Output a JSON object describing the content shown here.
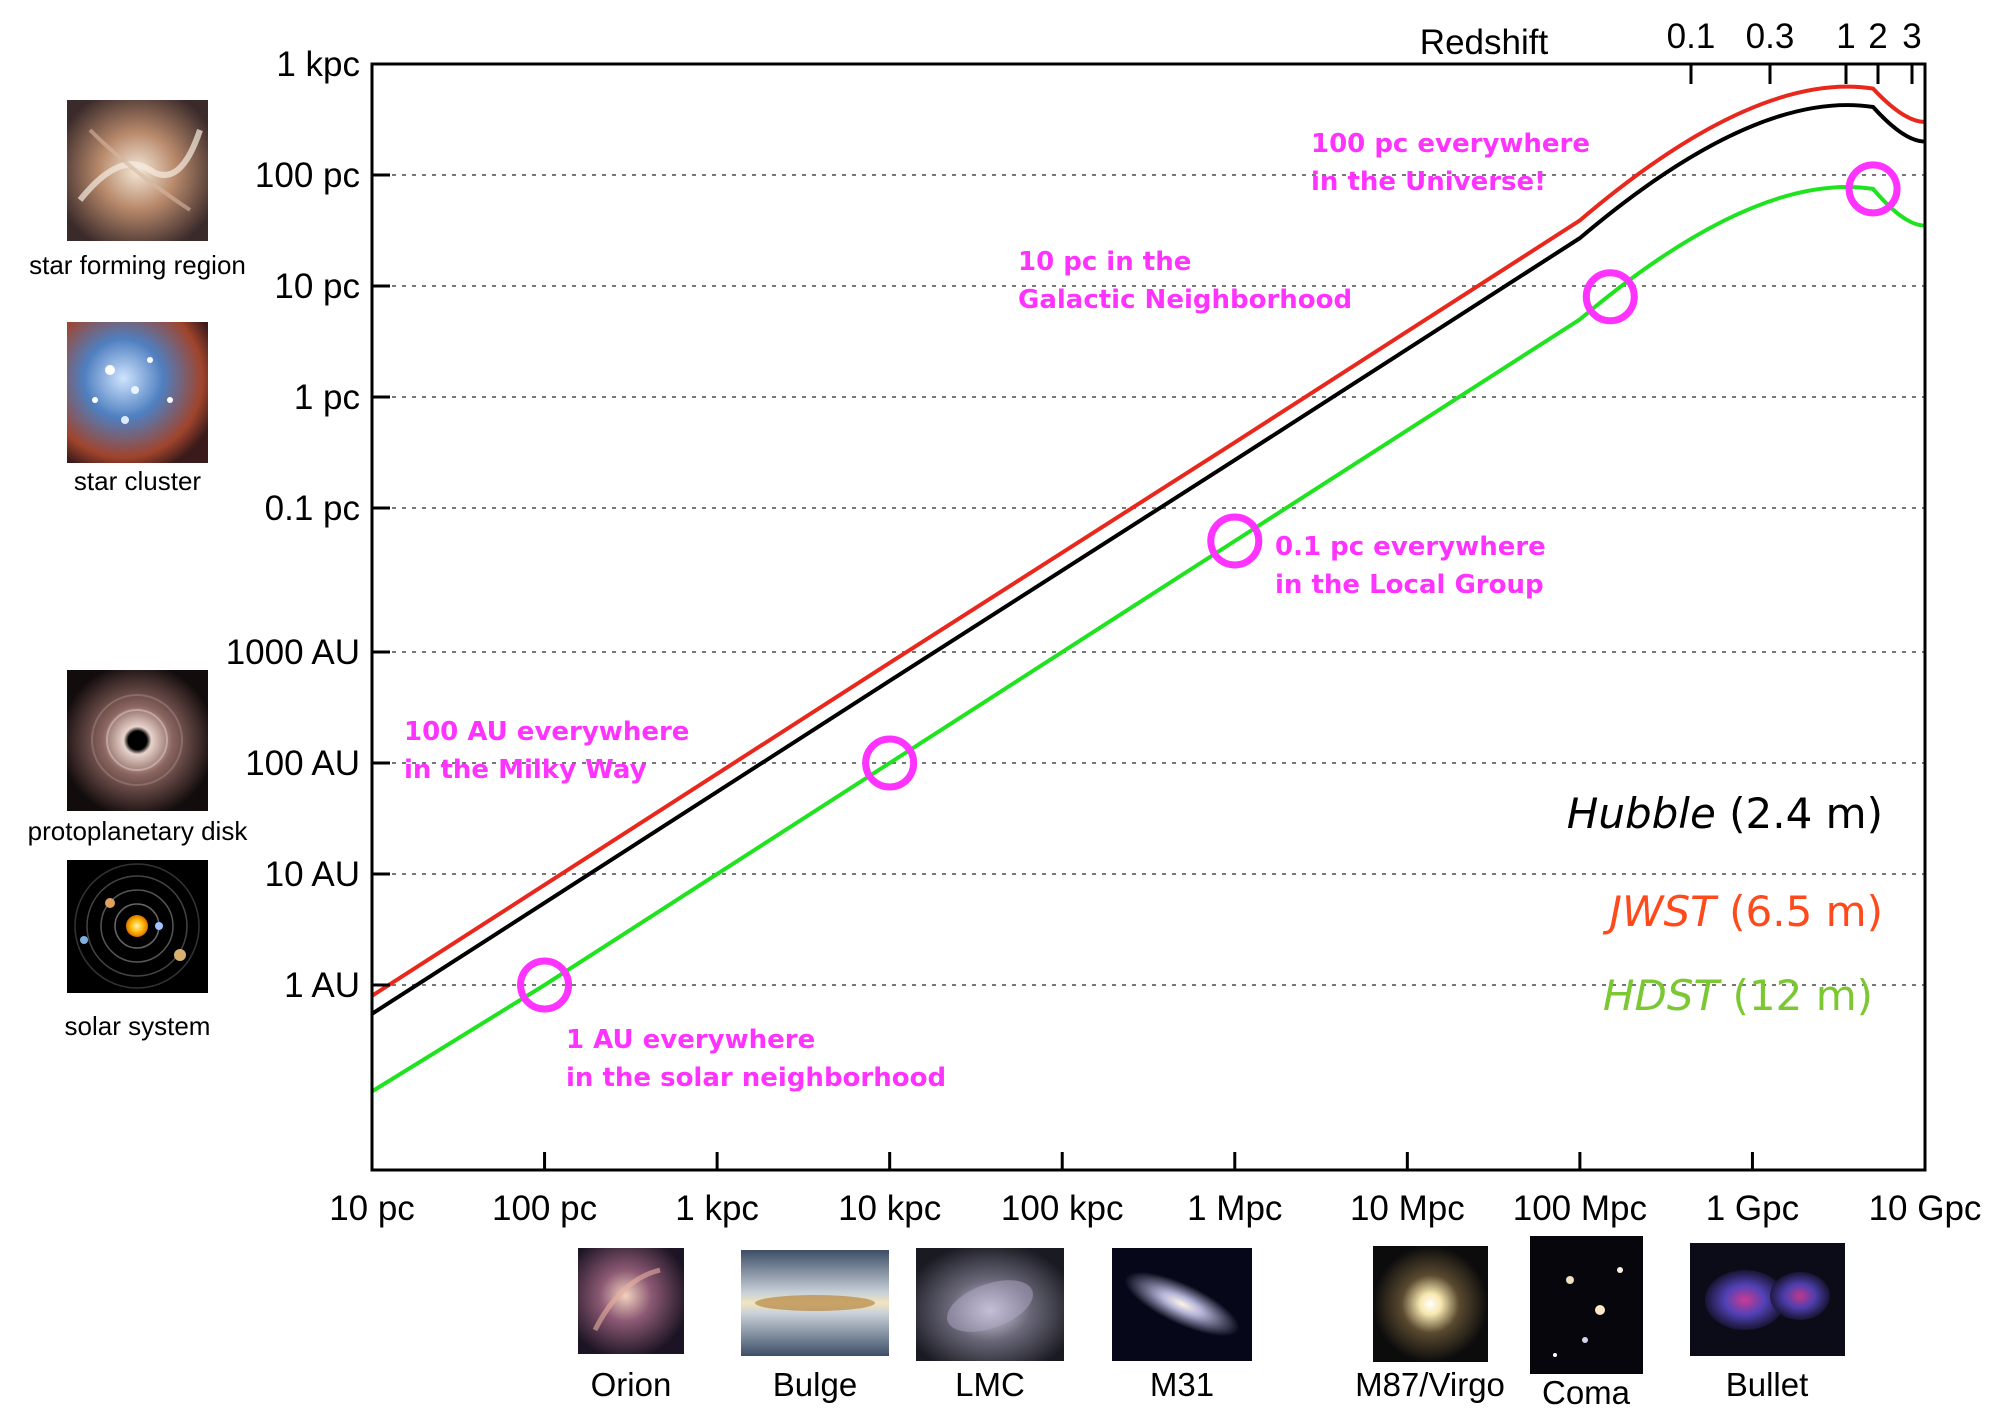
{
  "chart_data": {
    "type": "line",
    "title": "",
    "xlabel": "",
    "ylabel": "",
    "x_scale": "log",
    "y_scale": "log",
    "x_ticks": [
      "10 pc",
      "100 pc",
      "1 kpc",
      "10 kpc",
      "100 kpc",
      "1 Mpc",
      "10 Mpc",
      "100 Mpc",
      "1 Gpc",
      "10 Gpc"
    ],
    "y_ticks": [
      "1 AU",
      "10 AU",
      "100 AU",
      "1000 AU",
      "0.1 pc",
      "1 pc",
      "10 pc",
      "100 pc",
      "1 kpc"
    ],
    "top_axis": {
      "label": "Redshift",
      "ticks": [
        "0.1",
        "0.3",
        "1",
        "2",
        "3"
      ]
    },
    "grid": "horizontal dotted",
    "series": [
      {
        "name": "Hubble",
        "aperture": "(2.4 m)",
        "color": "#000000",
        "points": [
          [
            "10 pc",
            "0.55 AU"
          ],
          [
            "100 pc",
            "5.5 AU"
          ],
          [
            "10 kpc",
            "550 AU"
          ],
          [
            "1 Mpc",
            "0.27 pc"
          ],
          [
            "100 Mpc",
            "27 pc"
          ],
          [
            "5 Gpc",
            "410 pc"
          ],
          [
            "10 Gpc",
            "200 pc"
          ]
        ]
      },
      {
        "name": "JWST",
        "aperture": "(6.5 m)",
        "color": "#e8281c",
        "points": [
          [
            "10 pc",
            "0.8 AU"
          ],
          [
            "100 pc",
            "8 AU"
          ],
          [
            "10 kpc",
            "800 AU"
          ],
          [
            "1 Mpc",
            "0.39 pc"
          ],
          [
            "100 Mpc",
            "39 pc"
          ],
          [
            "5 Gpc",
            "600 pc"
          ],
          [
            "10 Gpc",
            "300 pc"
          ]
        ]
      },
      {
        "name": "HDST",
        "aperture": "(12 m)",
        "color": "#1fe31f",
        "points": [
          [
            "10 pc",
            "0.11 AU"
          ],
          [
            "100 pc",
            "1 AU"
          ],
          [
            "10 kpc",
            "100 AU"
          ],
          [
            "1 Mpc",
            "0.05 pc"
          ],
          [
            "100 Mpc",
            "5 pc"
          ],
          [
            "5 Gpc",
            "75 pc"
          ],
          [
            "10 Gpc",
            "35 pc"
          ]
        ]
      }
    ],
    "highlight_points": [
      {
        "x": "100 pc",
        "y": "1 AU"
      },
      {
        "x": "10 kpc",
        "y": "100 AU"
      },
      {
        "x": "1 Mpc",
        "y": "0.05 pc"
      },
      {
        "x": "150 Mpc",
        "y": "8 pc"
      },
      {
        "x": "5 Gpc",
        "y": "75 pc"
      }
    ],
    "annotations": [
      {
        "lines": [
          "100 pc everywhere",
          "in the Universe!"
        ]
      },
      {
        "lines": [
          "10 pc in the",
          "Galactic Neighborhood"
        ]
      },
      {
        "lines": [
          "0.1 pc everywhere",
          "in the Local Group"
        ]
      },
      {
        "lines": [
          "100 AU everywhere",
          "in the Milky Way"
        ]
      },
      {
        "lines": [
          "1 AU everywhere",
          "in the solar neighborhood"
        ]
      }
    ],
    "highlight_color": "#ff33ff"
  },
  "left_images": [
    {
      "label": "star forming region",
      "icon": "nebula-image"
    },
    {
      "label": "star cluster",
      "icon": "star-cluster-image"
    },
    {
      "label": "protoplanetary disk",
      "icon": "protoplanetary-disk-image"
    },
    {
      "label": "solar system",
      "icon": "solar-system-image"
    }
  ],
  "bottom_images": [
    {
      "label": "Orion",
      "icon": "orion-nebula-image"
    },
    {
      "label": "Bulge",
      "icon": "galactic-bulge-image"
    },
    {
      "label": "LMC",
      "icon": "lmc-image"
    },
    {
      "label": "M31",
      "icon": "andromeda-image"
    },
    {
      "label": "M87/Virgo",
      "icon": "elliptical-galaxy-image"
    },
    {
      "label": "Coma",
      "icon": "galaxy-cluster-image"
    },
    {
      "label": "Bullet",
      "icon": "bullet-cluster-image"
    }
  ]
}
